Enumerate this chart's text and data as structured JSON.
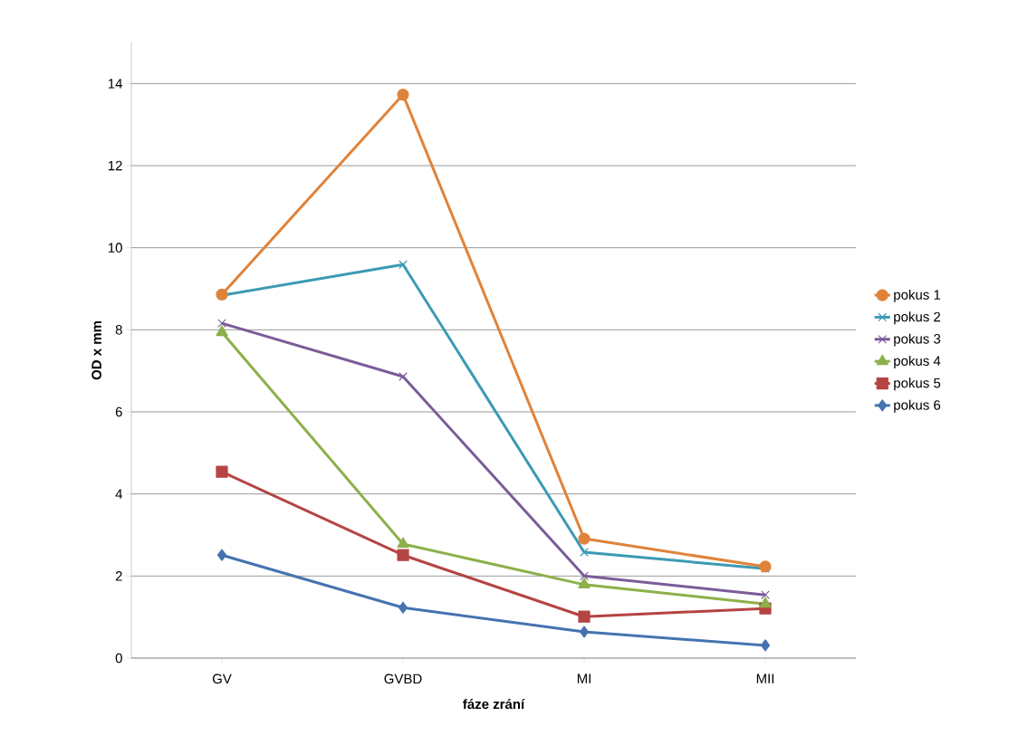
{
  "chart_data": {
    "type": "line",
    "xlabel": "fáze zrání",
    "ylabel": "OD x mm",
    "categories": [
      "GV",
      "GVBD",
      "MI",
      "MII"
    ],
    "ylim": [
      0,
      15
    ],
    "yticks": [
      0,
      2,
      4,
      6,
      8,
      10,
      12,
      14
    ],
    "grid": "y",
    "legend": "right",
    "series": [
      {
        "name": "pokus 1",
        "color": "#e0833a",
        "marker": "circle",
        "values": [
          8.86,
          13.73,
          2.91,
          2.23
        ]
      },
      {
        "name": "pokus 2",
        "color": "#3c9ab4",
        "marker": "cross",
        "values": [
          8.84,
          9.59,
          2.58,
          2.18
        ]
      },
      {
        "name": "pokus 3",
        "color": "#7a5c99",
        "marker": "cross",
        "values": [
          8.16,
          6.86,
          2.0,
          1.54
        ]
      },
      {
        "name": "pokus 4",
        "color": "#8db04a",
        "marker": "triangle",
        "values": [
          7.94,
          2.78,
          1.79,
          1.32
        ]
      },
      {
        "name": "pokus 5",
        "color": "#b54442",
        "marker": "square",
        "values": [
          4.54,
          2.51,
          1.01,
          1.21
        ]
      },
      {
        "name": "pokus 6",
        "color": "#4573b0",
        "marker": "diamond",
        "values": [
          2.51,
          1.23,
          0.64,
          0.31
        ]
      }
    ]
  }
}
